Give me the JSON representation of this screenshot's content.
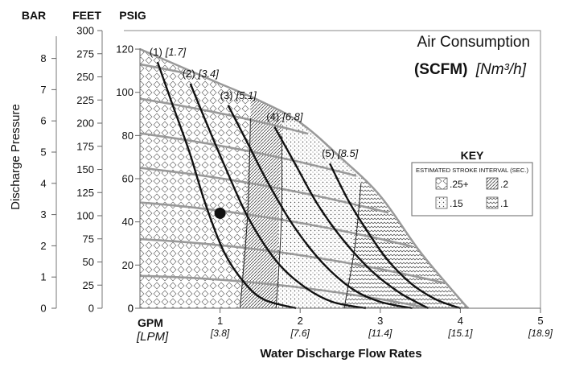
{
  "chart_data": {
    "type": "line",
    "title": "Air Consumption",
    "subtitle_bold": "(SCFM)",
    "subtitle_italic": "[Nm³/h]",
    "xlabel": "Water Discharge Flow Rates",
    "x_unit_primary": "GPM",
    "x_unit_secondary": "[LPM]",
    "ylabel": "Discharge Pressure",
    "axis_headers": {
      "bar": "BAR",
      "feet": "FEET",
      "psig": "PSIG"
    },
    "x_ticks": [
      {
        "value": 1,
        "label": "1",
        "sub": "[3.8]"
      },
      {
        "value": 2,
        "label": "2",
        "sub": "[7.6]"
      },
      {
        "value": 3,
        "label": "3",
        "sub": "[11.4]"
      },
      {
        "value": 4,
        "label": "4",
        "sub": "[15.1]"
      },
      {
        "value": 5,
        "label": "5",
        "sub": "[18.9]"
      }
    ],
    "x_zero_label": "0",
    "xlim": [
      0,
      5
    ],
    "ylim_psig": [
      0,
      120
    ],
    "psig_ticks": [
      "0",
      "20",
      "40",
      "60",
      "80",
      "100",
      "120"
    ],
    "feet_ticks": [
      "0",
      "25",
      "50",
      "75",
      "100",
      "125",
      "150",
      "175",
      "200",
      "225",
      "250",
      "275",
      "300"
    ],
    "bar_ticks": [
      "0",
      "1",
      "2",
      "3",
      "4",
      "5",
      "6",
      "7",
      "8"
    ],
    "envelope": [
      [
        0,
        120
      ],
      [
        0.5,
        112
      ],
      [
        1,
        104
      ],
      [
        1.5,
        96
      ],
      [
        2,
        86
      ],
      [
        2.5,
        70
      ],
      [
        3,
        52
      ],
      [
        3.5,
        26
      ],
      [
        4,
        4
      ],
      [
        4.1,
        0
      ]
    ],
    "pressure_curves": [
      {
        "y0": 113
      },
      {
        "y0": 97
      },
      {
        "y0": 81
      },
      {
        "y0": 65
      },
      {
        "y0": 49
      },
      {
        "y0": 32
      },
      {
        "y0": 15
      }
    ],
    "air_curves": [
      {
        "label": "(1)",
        "label_it": "[1.7]",
        "points": [
          [
            0.22,
            114
          ],
          [
            0.4,
            95
          ],
          [
            0.62,
            72
          ],
          [
            0.82,
            48
          ],
          [
            1.05,
            26
          ],
          [
            1.3,
            12
          ],
          [
            1.55,
            4
          ],
          [
            1.95,
            0
          ]
        ]
      },
      {
        "label": "(2)",
        "label_it": "[3.4]",
        "points": [
          [
            0.63,
            104
          ],
          [
            0.85,
            84
          ],
          [
            1.08,
            64
          ],
          [
            1.35,
            42
          ],
          [
            1.7,
            22
          ],
          [
            2.05,
            10
          ],
          [
            2.4,
            3
          ],
          [
            2.82,
            0
          ]
        ]
      },
      {
        "label": "(3)",
        "label_it": "[5.1]",
        "points": [
          [
            1.1,
            94
          ],
          [
            1.35,
            76
          ],
          [
            1.6,
            58
          ],
          [
            1.92,
            38
          ],
          [
            2.28,
            21
          ],
          [
            2.65,
            9
          ],
          [
            3.0,
            3
          ],
          [
            3.4,
            0
          ]
        ]
      },
      {
        "label": "(4)",
        "label_it": "[6.8]",
        "points": [
          [
            1.68,
            84
          ],
          [
            1.95,
            66
          ],
          [
            2.22,
            48
          ],
          [
            2.55,
            31
          ],
          [
            2.9,
            17
          ],
          [
            3.25,
            7
          ],
          [
            3.6,
            0
          ]
        ]
      },
      {
        "label": "(5)",
        "label_it": "[8.5]",
        "points": [
          [
            2.37,
            67
          ],
          [
            2.6,
            50
          ],
          [
            2.85,
            35
          ],
          [
            3.1,
            22
          ],
          [
            3.4,
            11
          ],
          [
            3.7,
            4
          ],
          [
            4.0,
            0
          ]
        ]
      }
    ],
    "stroke_dividers": [
      {
        "from": [
          1.38,
          88
        ],
        "to": [
          1.25,
          0
        ]
      },
      {
        "from": [
          1.77,
          80
        ],
        "to": [
          1.7,
          0
        ]
      },
      {
        "from": [
          2.76,
          58
        ],
        "to": [
          2.55,
          0
        ]
      }
    ],
    "operating_point": {
      "x": 1.0,
      "y": 44
    },
    "key": {
      "title": "KEY",
      "subtitle": "ESTIMATED STROKE INTERVAL (SEC.)",
      "items": [
        {
          "label": ".25+",
          "pattern": "diamond"
        },
        {
          "label": ".2",
          "pattern": "diagonal"
        },
        {
          "label": ".15",
          "pattern": "dots"
        },
        {
          "label": ".1",
          "pattern": "zigzag"
        }
      ]
    }
  }
}
